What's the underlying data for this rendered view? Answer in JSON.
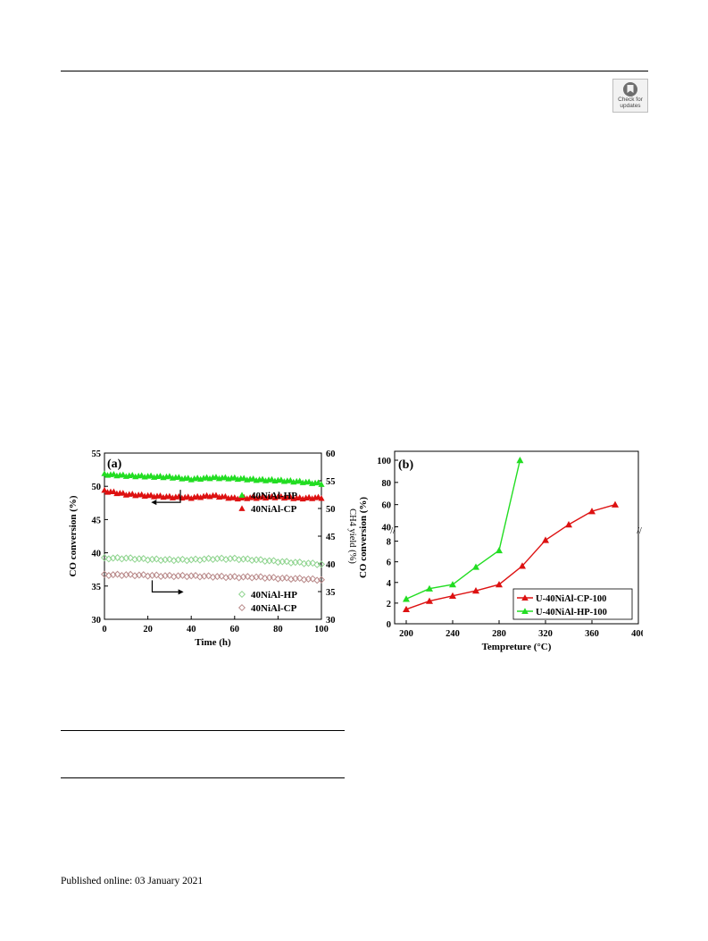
{
  "badge": {
    "line1": "Check for",
    "line2": "updates"
  },
  "published": "Published online: 03 January 2021",
  "colors": {
    "green": "#22dd22",
    "red": "#dd1111",
    "green_light": "#8fd48f",
    "red_light": "#b98a8a"
  },
  "chart_data": [
    {
      "type": "scatter",
      "panel_label": "(a)",
      "xlabel": "Time (h)",
      "ylabel": "CO conversion (%)",
      "y2label": "CH4 yield (%)",
      "xlim": [
        0,
        100
      ],
      "ylim": [
        30,
        55
      ],
      "y2lim": [
        30,
        60
      ],
      "x_ticks": [
        "0",
        "20",
        "40",
        "60",
        "80",
        "100"
      ],
      "y_ticks": [
        "30",
        "35",
        "40",
        "45",
        "50",
        "55"
      ],
      "y2_ticks": [
        "30",
        "35",
        "40",
        "45",
        "50",
        "55",
        "60"
      ],
      "legend_upper": [
        "40NiAl-HP",
        "40NiAl-CP"
      ],
      "legend_lower": [
        "40NiAl-HP",
        "40NiAl-CP"
      ],
      "series": [
        {
          "name": "40NiAl-HP",
          "axis": "left",
          "marker": "filled-triangle",
          "color": "green",
          "x": [
            0,
            10,
            20,
            30,
            40,
            50,
            60,
            70,
            80,
            90,
            100
          ],
          "y": [
            51.8,
            51.6,
            51.5,
            51.4,
            51.1,
            51.3,
            51.2,
            51.0,
            50.9,
            50.7,
            50.4
          ]
        },
        {
          "name": "40NiAl-CP",
          "axis": "left",
          "marker": "filled-triangle",
          "color": "red",
          "x": [
            0,
            10,
            20,
            30,
            40,
            50,
            60,
            70,
            80,
            90,
            100
          ],
          "y": [
            49.3,
            48.8,
            48.6,
            48.4,
            48.3,
            48.6,
            48.2,
            48.3,
            48.4,
            48.2,
            48.3
          ]
        },
        {
          "name": "40NiAl-HP",
          "axis": "right",
          "marker": "open-diamond",
          "color": "green_light",
          "x": [
            0,
            10,
            20,
            30,
            40,
            50,
            60,
            70,
            80,
            90,
            100
          ],
          "y": [
            41.0,
            41.0,
            40.8,
            40.7,
            40.7,
            40.9,
            40.9,
            40.7,
            40.4,
            40.2,
            39.9
          ]
        },
        {
          "name": "40NiAl-CP",
          "axis": "right",
          "marker": "open-diamond",
          "color": "red_light",
          "x": [
            0,
            10,
            20,
            30,
            40,
            50,
            60,
            70,
            80,
            90,
            100
          ],
          "y": [
            38.0,
            38.0,
            37.9,
            37.8,
            37.8,
            37.7,
            37.6,
            37.6,
            37.4,
            37.3,
            37.1
          ]
        }
      ]
    },
    {
      "type": "line",
      "panel_label": "(b)",
      "xlabel": "Tempreture (°C)",
      "ylabel": "CO conversion (%)",
      "xlim": [
        190,
        400
      ],
      "ylim": [
        0,
        100
      ],
      "axis_break": [
        9,
        38
      ],
      "x_ticks": [
        "200",
        "240",
        "280",
        "320",
        "360",
        "400"
      ],
      "y_ticks_lower": [
        "0",
        "2",
        "4",
        "6",
        "8"
      ],
      "y_ticks_upper": [
        "40",
        "60",
        "80",
        "100"
      ],
      "series": [
        {
          "name": "U-40NiAl-CP-100",
          "color": "red",
          "x": [
            200,
            220,
            240,
            260,
            280,
            300,
            320,
            340,
            360,
            380
          ],
          "y": [
            1.4,
            2.2,
            2.7,
            3.2,
            3.8,
            5.6,
            8.1,
            42,
            54,
            60
          ]
        },
        {
          "name": "U-40NiAl-HP-100",
          "color": "green",
          "x": [
            200,
            220,
            240,
            260,
            280,
            298
          ],
          "y": [
            2.4,
            3.4,
            3.8,
            5.5,
            7.1,
            100
          ]
        }
      ]
    }
  ]
}
